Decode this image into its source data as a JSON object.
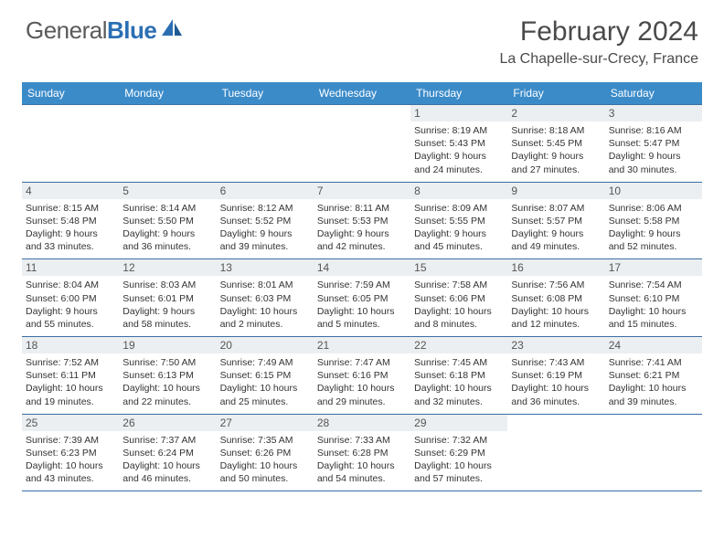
{
  "logo": {
    "word1": "General",
    "word2": "Blue"
  },
  "title": "February 2024",
  "location": "La Chapelle-sur-Crecy, France",
  "colors": {
    "header_bg": "#3b8bc9",
    "header_text": "#ffffff",
    "rule": "#3b6fa3",
    "daynum_bg": "#eceff1",
    "logo_grey": "#5a5a5a",
    "logo_blue": "#2b6fb3"
  },
  "day_names": [
    "Sunday",
    "Monday",
    "Tuesday",
    "Wednesday",
    "Thursday",
    "Friday",
    "Saturday"
  ],
  "weeks": [
    [
      null,
      null,
      null,
      null,
      {
        "n": "1",
        "sr": "8:19 AM",
        "ss": "5:43 PM",
        "dl": "9 hours and 24 minutes."
      },
      {
        "n": "2",
        "sr": "8:18 AM",
        "ss": "5:45 PM",
        "dl": "9 hours and 27 minutes."
      },
      {
        "n": "3",
        "sr": "8:16 AM",
        "ss": "5:47 PM",
        "dl": "9 hours and 30 minutes."
      }
    ],
    [
      {
        "n": "4",
        "sr": "8:15 AM",
        "ss": "5:48 PM",
        "dl": "9 hours and 33 minutes."
      },
      {
        "n": "5",
        "sr": "8:14 AM",
        "ss": "5:50 PM",
        "dl": "9 hours and 36 minutes."
      },
      {
        "n": "6",
        "sr": "8:12 AM",
        "ss": "5:52 PM",
        "dl": "9 hours and 39 minutes."
      },
      {
        "n": "7",
        "sr": "8:11 AM",
        "ss": "5:53 PM",
        "dl": "9 hours and 42 minutes."
      },
      {
        "n": "8",
        "sr": "8:09 AM",
        "ss": "5:55 PM",
        "dl": "9 hours and 45 minutes."
      },
      {
        "n": "9",
        "sr": "8:07 AM",
        "ss": "5:57 PM",
        "dl": "9 hours and 49 minutes."
      },
      {
        "n": "10",
        "sr": "8:06 AM",
        "ss": "5:58 PM",
        "dl": "9 hours and 52 minutes."
      }
    ],
    [
      {
        "n": "11",
        "sr": "8:04 AM",
        "ss": "6:00 PM",
        "dl": "9 hours and 55 minutes."
      },
      {
        "n": "12",
        "sr": "8:03 AM",
        "ss": "6:01 PM",
        "dl": "9 hours and 58 minutes."
      },
      {
        "n": "13",
        "sr": "8:01 AM",
        "ss": "6:03 PM",
        "dl": "10 hours and 2 minutes."
      },
      {
        "n": "14",
        "sr": "7:59 AM",
        "ss": "6:05 PM",
        "dl": "10 hours and 5 minutes."
      },
      {
        "n": "15",
        "sr": "7:58 AM",
        "ss": "6:06 PM",
        "dl": "10 hours and 8 minutes."
      },
      {
        "n": "16",
        "sr": "7:56 AM",
        "ss": "6:08 PM",
        "dl": "10 hours and 12 minutes."
      },
      {
        "n": "17",
        "sr": "7:54 AM",
        "ss": "6:10 PM",
        "dl": "10 hours and 15 minutes."
      }
    ],
    [
      {
        "n": "18",
        "sr": "7:52 AM",
        "ss": "6:11 PM",
        "dl": "10 hours and 19 minutes."
      },
      {
        "n": "19",
        "sr": "7:50 AM",
        "ss": "6:13 PM",
        "dl": "10 hours and 22 minutes."
      },
      {
        "n": "20",
        "sr": "7:49 AM",
        "ss": "6:15 PM",
        "dl": "10 hours and 25 minutes."
      },
      {
        "n": "21",
        "sr": "7:47 AM",
        "ss": "6:16 PM",
        "dl": "10 hours and 29 minutes."
      },
      {
        "n": "22",
        "sr": "7:45 AM",
        "ss": "6:18 PM",
        "dl": "10 hours and 32 minutes."
      },
      {
        "n": "23",
        "sr": "7:43 AM",
        "ss": "6:19 PM",
        "dl": "10 hours and 36 minutes."
      },
      {
        "n": "24",
        "sr": "7:41 AM",
        "ss": "6:21 PM",
        "dl": "10 hours and 39 minutes."
      }
    ],
    [
      {
        "n": "25",
        "sr": "7:39 AM",
        "ss": "6:23 PM",
        "dl": "10 hours and 43 minutes."
      },
      {
        "n": "26",
        "sr": "7:37 AM",
        "ss": "6:24 PM",
        "dl": "10 hours and 46 minutes."
      },
      {
        "n": "27",
        "sr": "7:35 AM",
        "ss": "6:26 PM",
        "dl": "10 hours and 50 minutes."
      },
      {
        "n": "28",
        "sr": "7:33 AM",
        "ss": "6:28 PM",
        "dl": "10 hours and 54 minutes."
      },
      {
        "n": "29",
        "sr": "7:32 AM",
        "ss": "6:29 PM",
        "dl": "10 hours and 57 minutes."
      },
      null,
      null
    ]
  ],
  "labels": {
    "sunrise": "Sunrise:",
    "sunset": "Sunset:",
    "daylight": "Daylight:"
  }
}
